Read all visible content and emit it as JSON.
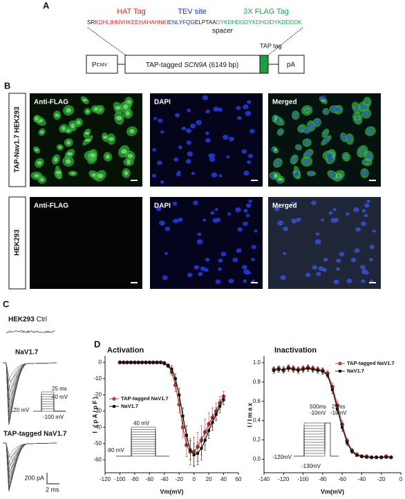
{
  "panel_a": {
    "label": "A",
    "hat_tag": "HAT Tag",
    "tev_site": "TEV site",
    "flag_tag": "3X FLAG Tag",
    "sequence": [
      "SR",
      "KDHLIHNVHKEEHAHAHNK",
      "IENLYFQG",
      "ELPTAA",
      "DYKDHDGDYKDHDIDYKDDDDK"
    ],
    "spacer": "spacer",
    "tap_tag": "TAP tag",
    "promoter": "P",
    "promoter_sub": "CMV",
    "gene_prefix": "TAP-tagged ",
    "gene": "SCN9A",
    "gene_suffix": " (6149 bp)",
    "polya": "pA"
  },
  "panel_b": {
    "label": "B",
    "rows": [
      "TAP-Nav1.7 HEK293",
      "HEK293"
    ],
    "columns": [
      "Anti-FLAG",
      "DAPI",
      "Merged"
    ]
  },
  "panel_c": {
    "label": "C",
    "ctrl_bold": "HEK293",
    "ctrl": " Ctrl",
    "nav": "NaV1.7",
    "protocol": [
      "25 ms",
      "40 mV",
      "-120 mV",
      "-100 mV"
    ],
    "tap": "TAP-tagged NaV1.7",
    "scale_y": "200 pA",
    "scale_x": "2 ms"
  },
  "panel_d": {
    "label": "D"
  },
  "chart_data": [
    {
      "type": "line",
      "title": "Activation",
      "x_label": "Vm(mV)",
      "y_label": "I (pA/pF)",
      "x": [
        -100,
        -95,
        -90,
        -85,
        -80,
        -75,
        -70,
        -65,
        -60,
        -55,
        -50,
        -45,
        -40,
        -35,
        -30,
        -25,
        -20,
        -15,
        -10,
        -5,
        0,
        5,
        10,
        15,
        20,
        25,
        30,
        35,
        40
      ],
      "series": [
        {
          "name": "TAP-tagged NaV1.7",
          "color": "#c0392b",
          "marker": "circle",
          "values": [
            0,
            0,
            0,
            0,
            0,
            0,
            0,
            0,
            0,
            0,
            0,
            0,
            -0.5,
            -2,
            -6,
            -14,
            -26,
            -40,
            -51,
            -55,
            -55,
            -52,
            -48,
            -43,
            -38,
            -34,
            -30,
            -25,
            -21
          ],
          "errors": [
            0.5,
            0.5,
            0.5,
            0.5,
            0.5,
            0.5,
            0.5,
            0.5,
            0.5,
            0.5,
            0.5,
            0.5,
            1,
            1,
            2,
            4,
            5,
            6,
            7,
            8,
            9,
            9,
            9,
            8,
            7,
            6,
            5,
            4,
            3
          ]
        },
        {
          "name": "NaV1.7",
          "color": "#111111",
          "marker": "square",
          "values": [
            0,
            0,
            0,
            0,
            0,
            0,
            0,
            0,
            0,
            0,
            0,
            0,
            -0.5,
            -2,
            -4,
            -10,
            -20,
            -33,
            -45,
            -54,
            -57,
            -56,
            -53,
            -48,
            -42,
            -37,
            -32,
            -27,
            -23
          ],
          "errors": [
            0.5,
            0.5,
            0.5,
            0.5,
            0.5,
            0.5,
            0.5,
            0.5,
            0.5,
            0.5,
            0.5,
            0.5,
            1,
            1,
            2,
            3,
            4,
            5,
            6,
            6,
            7,
            7,
            7,
            6,
            5,
            5,
            4,
            4,
            3
          ]
        }
      ],
      "xlim": [
        -120,
        60
      ],
      "xticks": [
        -120,
        -100,
        -80,
        -60,
        -40,
        -20,
        0,
        20,
        40,
        60
      ],
      "ylim": [
        -68,
        4
      ],
      "yticks": [
        0,
        -10,
        -20,
        -30,
        -40,
        -50,
        -60
      ],
      "legend": "left",
      "annotations": [
        "40 mV",
        "-80 mV"
      ]
    },
    {
      "type": "line",
      "title": "Inactivation",
      "x_label": "Vm(mV)",
      "y_label": "I/Imax",
      "x": [
        -130,
        -125,
        -120,
        -115,
        -110,
        -105,
        -100,
        -95,
        -90,
        -85,
        -80,
        -75,
        -70,
        -65,
        -60,
        -55,
        -50,
        -45,
        -40,
        -35,
        -30,
        -25,
        -20,
        -15,
        -10
      ],
      "series": [
        {
          "name": "TAP-tagged NaV1.7",
          "color": "#c0392b",
          "marker": "circle",
          "values": [
            0.93,
            0.94,
            0.92,
            0.95,
            0.94,
            0.93,
            0.94,
            0.95,
            0.94,
            0.93,
            0.92,
            0.89,
            0.75,
            0.56,
            0.36,
            0.19,
            0.09,
            0.05,
            0.03,
            0.03,
            0.02,
            0.02,
            0.02,
            0.03,
            0.02
          ],
          "errors": [
            0.03,
            0.03,
            0.03,
            0.03,
            0.03,
            0.03,
            0.03,
            0.03,
            0.03,
            0.03,
            0.03,
            0.03,
            0.04,
            0.04,
            0.04,
            0.03,
            0.02,
            0.01,
            0.01,
            0.01,
            0.01,
            0.01,
            0.01,
            0.01,
            0.01
          ]
        },
        {
          "name": "NaV1.7",
          "color": "#111111",
          "marker": "square",
          "values": [
            0.92,
            0.93,
            0.93,
            0.94,
            0.93,
            0.92,
            0.93,
            0.94,
            0.93,
            0.92,
            0.91,
            0.87,
            0.72,
            0.52,
            0.33,
            0.17,
            0.08,
            0.04,
            0.03,
            0.02,
            0.02,
            0.02,
            0.02,
            0.02,
            0.02
          ],
          "errors": [
            0.03,
            0.03,
            0.03,
            0.03,
            0.03,
            0.03,
            0.03,
            0.03,
            0.03,
            0.03,
            0.03,
            0.03,
            0.04,
            0.04,
            0.04,
            0.03,
            0.02,
            0.01,
            0.01,
            0.01,
            0.01,
            0.01,
            0.01,
            0.01,
            0.01
          ]
        }
      ],
      "xlim": [
        -140,
        0
      ],
      "xticks": [
        -140,
        -120,
        -100,
        -80,
        -60,
        -40,
        -20,
        0
      ],
      "ylim": [
        -0.14,
        1.07
      ],
      "yticks": [
        {
          "value": 0,
          "label": "0.0"
        },
        {
          "value": 0.2,
          "label": "0.2"
        },
        {
          "value": 0.4,
          "label": "0.4"
        },
        {
          "value": 0.6,
          "label": "0.6"
        },
        {
          "value": 0.8,
          "label": "0.8"
        },
        {
          "value": 1,
          "label": "1.0"
        }
      ],
      "legend": "upper right",
      "annotations": [
        "500ms",
        "-10mV",
        "25ms",
        "-10mV",
        "-120mV",
        "-130mV"
      ]
    }
  ]
}
